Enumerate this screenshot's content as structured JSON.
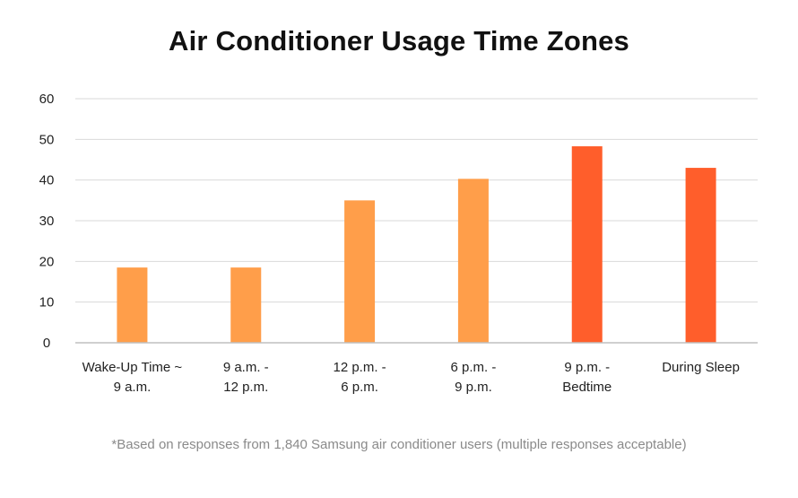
{
  "chart_data": {
    "type": "bar",
    "title": "Air Conditioner Usage Time Zones",
    "categories": [
      [
        "Wake-Up Time ~",
        "9 a.m."
      ],
      [
        "9 a.m. -",
        "12 p.m."
      ],
      [
        "12 p.m. -",
        "6 p.m."
      ],
      [
        "6 p.m. -",
        "9 p.m."
      ],
      [
        "9 p.m. -",
        "Bedtime"
      ],
      [
        "During Sleep"
      ]
    ],
    "values": [
      18.5,
      18.5,
      35,
      40.3,
      48.3,
      43
    ],
    "colors": [
      "#FF9E4A",
      "#FF9E4A",
      "#FF9E4A",
      "#FF9E4A",
      "#FF5E2B",
      "#FF5E2B"
    ],
    "ylim": [
      0,
      60
    ],
    "yticks": [
      0,
      10,
      20,
      30,
      40,
      50,
      60
    ],
    "grid": true,
    "xlabel": "",
    "ylabel": "",
    "footnote": "*Based on responses from 1,840 Samsung air conditioner users (multiple responses acceptable)"
  }
}
